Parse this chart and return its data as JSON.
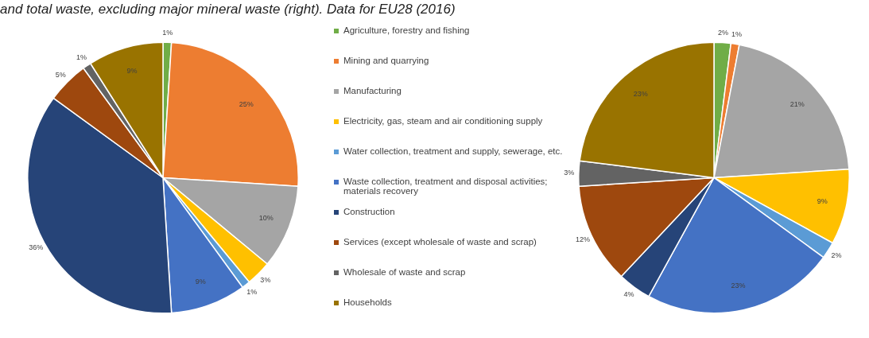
{
  "chart_data": [
    {
      "type": "pie",
      "title": "and total waste, excluding major mineral waste (right). Data for EU28 (2016)",
      "legend": "right",
      "categories": [
        "Agriculture, forestry and fishing",
        "Mining and quarrying",
        "Manufacturing",
        "Electricity, gas, steam and air conditioning supply",
        "Water collection, treatment and supply, sewerage, etc.",
        "Waste collection, treatment and disposal activities; materials recovery",
        "Construction",
        "Services (except wholesale of waste and scrap)",
        "Wholesale of waste and scrap",
        "Households"
      ],
      "values": [
        1,
        25,
        10,
        3,
        1,
        9,
        36,
        5,
        1,
        9
      ],
      "value_labels": [
        "1%",
        "25%",
        "10%",
        "3%",
        "1%",
        "9%",
        "36%",
        "5%",
        "1%",
        "9%"
      ],
      "colors": [
        "#70ad47",
        "#ed7d31",
        "#a5a5a5",
        "#ffc000",
        "#5b9bd5",
        "#4472c4",
        "#264478",
        "#9e480e",
        "#636363",
        "#997300"
      ]
    },
    {
      "type": "pie",
      "categories": [
        null,
        null,
        null,
        null,
        null,
        null,
        null,
        null,
        null,
        null
      ],
      "values": [
        2,
        1,
        21,
        9,
        2,
        23,
        4,
        12,
        3,
        23
      ],
      "value_labels": [
        "2%",
        "1%",
        "21%",
        "9%",
        "2%",
        "23%",
        "4%",
        "12%",
        "3%",
        "23%"
      ],
      "colors": [
        "#70ad47",
        "#ed7d31",
        "#a5a5a5",
        "#ffc000",
        "#5b9bd5",
        "#4472c4",
        "#264478",
        "#9e480e",
        "#636363",
        "#997300"
      ]
    }
  ]
}
